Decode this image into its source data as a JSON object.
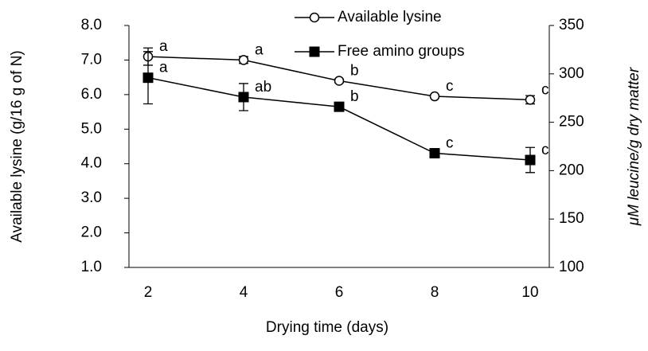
{
  "chart_data": {
    "type": "line",
    "x_label": "Drying time (days)",
    "y_label": "Available lysine (g/16 g of N)",
    "y2_label": "μM leucine/g dry matter",
    "categories": [
      "2",
      "4",
      "6",
      "8",
      "10"
    ],
    "ylim": [
      1,
      8
    ],
    "yticks": [
      {
        "value": 1,
        "label": "1.0"
      },
      {
        "value": 2,
        "label": "2.0"
      },
      {
        "value": 3,
        "label": "3.0"
      },
      {
        "value": 4,
        "label": "4.0"
      },
      {
        "value": 5,
        "label": "5.0"
      },
      {
        "value": 6,
        "label": "6.0"
      },
      {
        "value": 7,
        "label": "7.0"
      },
      {
        "value": 8,
        "label": "8.0"
      }
    ],
    "y2lim": [
      100,
      350
    ],
    "y2ticks": [
      100,
      150,
      200,
      250,
      300,
      350
    ],
    "series": [
      {
        "name": "Available lysine",
        "color": "#000000",
        "marker": "open-circle",
        "values": [
          7.1,
          7.0,
          6.4,
          5.95,
          5.85
        ],
        "errors": [
          0.25,
          0.1,
          0.05,
          0.03,
          0.12
        ],
        "labels": [
          "a",
          "a",
          "b",
          "c",
          "c"
        ]
      },
      {
        "name": "Free amino groups",
        "color": "#000000",
        "marker": "filled-square",
        "axis": "y2",
        "values": [
          296,
          276,
          266,
          218,
          211
        ],
        "errors": [
          27,
          14,
          3,
          4,
          13
        ],
        "labels": [
          "a",
          "ab",
          "b",
          "c",
          "c"
        ]
      }
    ]
  }
}
